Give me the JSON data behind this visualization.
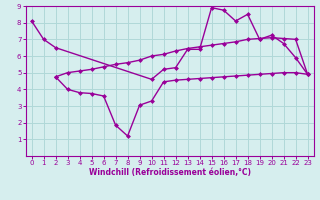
{
  "line1_x": [
    0,
    1,
    2,
    10,
    11,
    12,
    13,
    14,
    15,
    16,
    17,
    18,
    19,
    20,
    21,
    22,
    23
  ],
  "line1_y": [
    8.1,
    7.0,
    6.5,
    4.6,
    5.2,
    5.3,
    6.4,
    6.4,
    8.9,
    8.75,
    8.1,
    8.5,
    7.0,
    7.25,
    6.75,
    5.9,
    4.9
  ],
  "line2_x": [
    2,
    3,
    4,
    5,
    6,
    7,
    8,
    9,
    10,
    11,
    12,
    13,
    14,
    15,
    16,
    17,
    18,
    19,
    20,
    21,
    22,
    23
  ],
  "line2_y": [
    4.75,
    5.0,
    5.1,
    5.2,
    5.35,
    5.5,
    5.6,
    5.75,
    6.0,
    6.1,
    6.3,
    6.45,
    6.55,
    6.65,
    6.75,
    6.85,
    7.0,
    7.05,
    7.1,
    7.05,
    7.0,
    4.9
  ],
  "line3_x": [
    2,
    3,
    4,
    5,
    6,
    7,
    8,
    9,
    10,
    11,
    12,
    13,
    14,
    15,
    16,
    17,
    18,
    19,
    20,
    21,
    22,
    23
  ],
  "line3_y": [
    4.75,
    4.0,
    3.8,
    3.75,
    3.6,
    1.85,
    1.2,
    3.05,
    3.3,
    4.45,
    4.55,
    4.6,
    4.65,
    4.7,
    4.75,
    4.8,
    4.85,
    4.9,
    4.95,
    5.0,
    5.0,
    4.9
  ],
  "line_color": "#990099",
  "bg_color": "#d6eeee",
  "grid_color": "#b0d8d8",
  "xlabel": "Windchill (Refroidissement éolien,°C)",
  "xlim": [
    -0.5,
    23.5
  ],
  "ylim": [
    0,
    9
  ],
  "xticks": [
    0,
    1,
    2,
    3,
    4,
    5,
    6,
    7,
    8,
    9,
    10,
    11,
    12,
    13,
    14,
    15,
    16,
    17,
    18,
    19,
    20,
    21,
    22,
    23
  ],
  "yticks": [
    1,
    2,
    3,
    4,
    5,
    6,
    7,
    8,
    9
  ],
  "marker": "D",
  "markersize": 2.5,
  "linewidth": 1.0
}
